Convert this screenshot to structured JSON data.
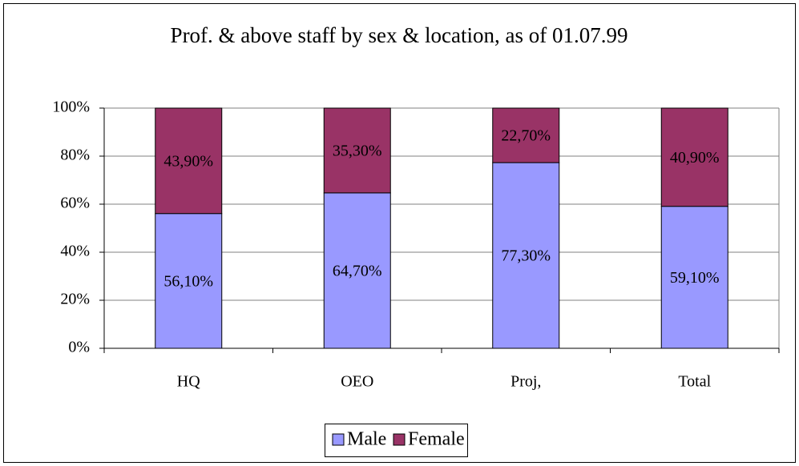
{
  "chart_data": {
    "type": "bar",
    "stacked": true,
    "title": "Prof. & above staff by sex & location, as of 01.07.99",
    "categories": [
      "HQ",
      "OEO",
      "Proj,",
      "Total"
    ],
    "series": [
      {
        "name": "Male",
        "color": "#9999ff",
        "values": [
          56.1,
          64.7,
          77.3,
          59.1
        ],
        "value_labels": [
          "56,10%",
          "64,70%",
          "77,30%",
          "59,10%"
        ]
      },
      {
        "name": "Female",
        "color": "#993366",
        "values": [
          43.9,
          35.3,
          22.7,
          40.9
        ],
        "value_labels": [
          "43,90%",
          "35,30%",
          "22,70%",
          "40,90%"
        ]
      }
    ],
    "ylim": [
      0,
      100
    ],
    "yticks": [
      {
        "value": 0,
        "label": "0%"
      },
      {
        "value": 20,
        "label": "20%"
      },
      {
        "value": 40,
        "label": "40%"
      },
      {
        "value": 60,
        "label": "60%"
      },
      {
        "value": 80,
        "label": "80%"
      },
      {
        "value": 100,
        "label": "100%"
      }
    ],
    "grid": true,
    "legend": "bottom"
  }
}
